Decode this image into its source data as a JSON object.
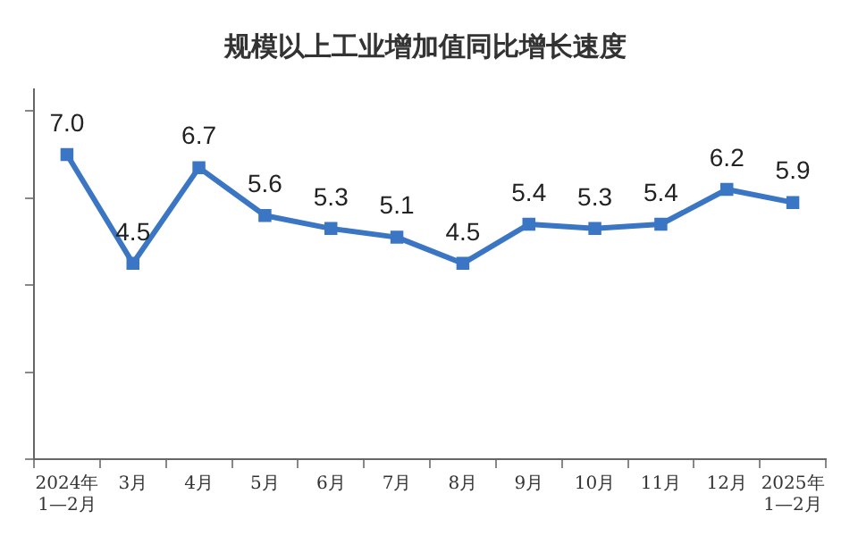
{
  "chart_data": {
    "type": "line",
    "title": "规模以上工业增加值同比增长速度",
    "categories": [
      "2024年\n1—2月",
      "3月",
      "4月",
      "5月",
      "6月",
      "7月",
      "8月",
      "9月",
      "10月",
      "11月",
      "12月",
      "2025年\n1—2月"
    ],
    "series": [
      {
        "color": "#3a76c4",
        "values": [
          7.0,
          4.5,
          6.7,
          5.6,
          5.3,
          5.1,
          4.5,
          5.4,
          5.3,
          5.4,
          6.2,
          5.9
        ],
        "value_labels": [
          "7.0",
          "4.5",
          "6.7",
          "5.6",
          "5.3",
          "5.1",
          "4.5",
          "5.4",
          "5.3",
          "5.4",
          "6.2",
          "5.9"
        ]
      }
    ],
    "ylim": [
      0,
      8.5
    ],
    "yticks": [
      {
        "value": 0,
        "label": null
      },
      {
        "value": 2,
        "label": null
      },
      {
        "value": 4,
        "label": null
      },
      {
        "value": 6,
        "label": null
      },
      {
        "value": 8,
        "label": null
      }
    ],
    "tick_labels": "x",
    "grid": false,
    "legend": false,
    "marker": "square",
    "line_style": "solid"
  }
}
